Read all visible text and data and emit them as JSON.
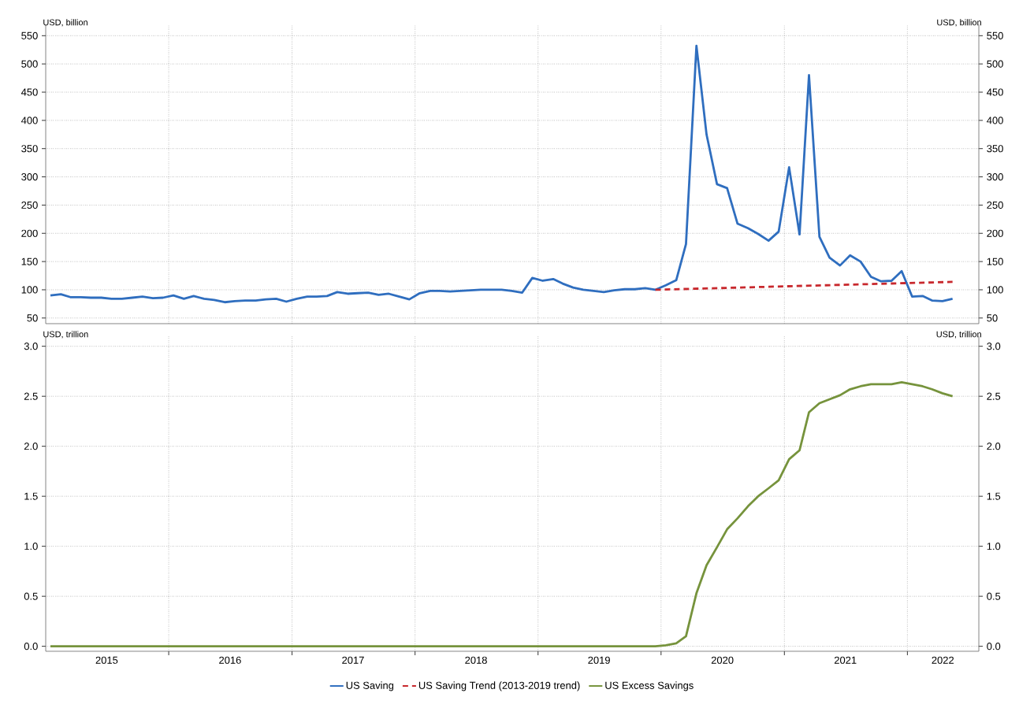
{
  "chart_data": [
    {
      "type": "line",
      "ylabel": "USD, billion",
      "y2label": "USD, billion",
      "x": [
        "2015-01-15",
        "2015-02-15",
        "2015-03-15",
        "2015-04-15",
        "2015-05-15",
        "2015-06-15",
        "2015-07-15",
        "2015-08-15",
        "2015-09-15",
        "2015-10-15",
        "2015-11-15",
        "2015-12-15",
        "2016-01-15",
        "2016-02-15",
        "2016-03-15",
        "2016-04-15",
        "2016-05-15",
        "2016-06-15",
        "2016-07-15",
        "2016-08-15",
        "2016-09-15",
        "2016-10-15",
        "2016-11-15",
        "2016-12-15",
        "2017-01-15",
        "2017-02-15",
        "2017-03-15",
        "2017-04-15",
        "2017-05-15",
        "2017-06-15",
        "2017-07-15",
        "2017-08-15",
        "2017-09-15",
        "2017-10-15",
        "2017-11-15",
        "2017-12-15",
        "2018-01-15",
        "2018-02-15",
        "2018-03-15",
        "2018-04-15",
        "2018-05-15",
        "2018-06-15",
        "2018-07-15",
        "2018-08-15",
        "2018-09-15",
        "2018-10-15",
        "2018-11-15",
        "2018-12-15",
        "2019-01-15",
        "2019-02-15",
        "2019-03-15",
        "2019-04-15",
        "2019-05-15",
        "2019-06-15",
        "2019-07-15",
        "2019-08-15",
        "2019-09-15",
        "2019-10-15",
        "2019-11-15",
        "2019-12-15",
        "2020-01-15",
        "2020-02-15",
        "2020-03-15",
        "2020-04-15",
        "2020-05-15",
        "2020-06-15",
        "2020-07-15",
        "2020-08-15",
        "2020-09-15",
        "2020-10-15",
        "2020-11-15",
        "2020-12-15",
        "2021-01-15",
        "2021-02-15",
        "2021-03-15",
        "2021-04-15",
        "2021-05-15",
        "2021-06-15",
        "2021-07-15",
        "2021-08-15",
        "2021-09-15",
        "2021-10-15",
        "2021-11-15",
        "2021-12-15",
        "2022-01-15",
        "2022-02-15",
        "2022-03-15",
        "2022-04-15",
        "2022-05-15"
      ],
      "series": [
        {
          "name": "US Saving",
          "color": "#2f6ebf",
          "line_style": "solid",
          "values": [
            90,
            92,
            87,
            87,
            86,
            86,
            84,
            84,
            86,
            88,
            85,
            86,
            90,
            84,
            89,
            84,
            82,
            78,
            80,
            81,
            81,
            83,
            84,
            79,
            84,
            88,
            88,
            89,
            96,
            93,
            94,
            95,
            91,
            93,
            88,
            83,
            94,
            98,
            98,
            97,
            98,
            99,
            100,
            100,
            100,
            98,
            95,
            121,
            116,
            119,
            111,
            104,
            100,
            98,
            96,
            99,
            101,
            101,
            103,
            100,
            108,
            117,
            181,
            532,
            375,
            287,
            280,
            217,
            209,
            199,
            187,
            203,
            317,
            198,
            480,
            194,
            157,
            143,
            161,
            150,
            123,
            115,
            116,
            133,
            88,
            89,
            81,
            80,
            84
          ]
        },
        {
          "name": "US Saving Trend (2013-2019 trend)",
          "color": "#c8282d",
          "line_style": "dashed",
          "x": [
            "2019-12-15",
            "2022-05-15"
          ],
          "values": [
            100,
            114
          ]
        }
      ],
      "xlim": [
        "2015-01-01",
        "2022-08-01"
      ],
      "xticks": [
        {
          "value": "2016-01-01",
          "label": null
        },
        {
          "value": "2017-01-01",
          "label": null
        },
        {
          "value": "2018-01-01",
          "label": null
        },
        {
          "value": "2019-01-01",
          "label": null
        },
        {
          "value": "2020-01-01",
          "label": null
        },
        {
          "value": "2021-01-01",
          "label": null
        },
        {
          "value": "2022-01-01",
          "label": null
        }
      ],
      "ylim": [
        40,
        570
      ],
      "yticks": [
        50,
        100,
        150,
        200,
        250,
        300,
        350,
        400,
        450,
        500,
        550
      ],
      "y2lim": [
        40,
        570
      ],
      "y2ticks": [
        50,
        100,
        150,
        200,
        250,
        300,
        350,
        400,
        450,
        500,
        550
      ],
      "tick_labels": "y",
      "grid": true,
      "marker": "none",
      "legend": false
    },
    {
      "type": "line",
      "ylabel": "USD, trillion",
      "y2label": "USD, trillion",
      "x": [
        "2015-01-15",
        "2015-02-15",
        "2015-03-15",
        "2015-04-15",
        "2015-05-15",
        "2015-06-15",
        "2015-07-15",
        "2015-08-15",
        "2015-09-15",
        "2015-10-15",
        "2015-11-15",
        "2015-12-15",
        "2016-01-15",
        "2016-02-15",
        "2016-03-15",
        "2016-04-15",
        "2016-05-15",
        "2016-06-15",
        "2016-07-15",
        "2016-08-15",
        "2016-09-15",
        "2016-10-15",
        "2016-11-15",
        "2016-12-15",
        "2017-01-15",
        "2017-02-15",
        "2017-03-15",
        "2017-04-15",
        "2017-05-15",
        "2017-06-15",
        "2017-07-15",
        "2017-08-15",
        "2017-09-15",
        "2017-10-15",
        "2017-11-15",
        "2017-12-15",
        "2018-01-15",
        "2018-02-15",
        "2018-03-15",
        "2018-04-15",
        "2018-05-15",
        "2018-06-15",
        "2018-07-15",
        "2018-08-15",
        "2018-09-15",
        "2018-10-15",
        "2018-11-15",
        "2018-12-15",
        "2019-01-15",
        "2019-02-15",
        "2019-03-15",
        "2019-04-15",
        "2019-05-15",
        "2019-06-15",
        "2019-07-15",
        "2019-08-15",
        "2019-09-15",
        "2019-10-15",
        "2019-11-15",
        "2019-12-15",
        "2020-01-15",
        "2020-02-15",
        "2020-03-15",
        "2020-04-15",
        "2020-05-15",
        "2020-06-15",
        "2020-07-15",
        "2020-08-15",
        "2020-09-15",
        "2020-10-15",
        "2020-11-15",
        "2020-12-15",
        "2021-01-15",
        "2021-02-15",
        "2021-03-15",
        "2021-04-15",
        "2021-05-15",
        "2021-06-15",
        "2021-07-15",
        "2021-08-15",
        "2021-09-15",
        "2021-10-15",
        "2021-11-15",
        "2021-12-15",
        "2022-01-15",
        "2022-02-15",
        "2022-03-15",
        "2022-04-15",
        "2022-05-15"
      ],
      "series": [
        {
          "name": "US Excess Savings",
          "color": "#76933c",
          "line_style": "solid",
          "values": [
            0,
            0,
            0,
            0,
            0,
            0,
            0,
            0,
            0,
            0,
            0,
            0,
            0,
            0,
            0,
            0,
            0,
            0,
            0,
            0,
            0,
            0,
            0,
            0,
            0,
            0,
            0,
            0,
            0,
            0,
            0,
            0,
            0,
            0,
            0,
            0,
            0,
            0,
            0,
            0,
            0,
            0,
            0,
            0,
            0,
            0,
            0,
            0,
            0,
            0,
            0,
            0,
            0,
            0,
            0,
            0,
            0,
            0,
            0,
            0,
            0.01,
            0.03,
            0.1,
            0.53,
            0.81,
            0.99,
            1.17,
            1.28,
            1.4,
            1.5,
            1.58,
            1.66,
            1.87,
            1.96,
            2.34,
            2.43,
            2.47,
            2.51,
            2.57,
            2.6,
            2.62,
            2.62,
            2.62,
            2.64,
            2.62,
            2.6,
            2.57,
            2.53,
            2.5
          ]
        }
      ],
      "xlim": [
        "2015-01-01",
        "2022-08-01"
      ],
      "xticks": [
        {
          "value": "2015-07-01",
          "label": "2015"
        },
        {
          "value": "2016-01-01",
          "label": null
        },
        {
          "value": "2016-07-01",
          "label": "2016"
        },
        {
          "value": "2017-01-01",
          "label": null
        },
        {
          "value": "2017-07-01",
          "label": "2017"
        },
        {
          "value": "2018-01-01",
          "label": null
        },
        {
          "value": "2018-07-01",
          "label": "2018"
        },
        {
          "value": "2019-01-01",
          "label": null
        },
        {
          "value": "2019-07-01",
          "label": "2019"
        },
        {
          "value": "2020-01-01",
          "label": null
        },
        {
          "value": "2020-07-01",
          "label": "2020"
        },
        {
          "value": "2021-01-01",
          "label": null
        },
        {
          "value": "2021-07-01",
          "label": "2021"
        },
        {
          "value": "2022-01-01",
          "label": null
        },
        {
          "value": "2022-04-16",
          "label": "2022"
        }
      ],
      "ylim": [
        -0.05,
        3.1
      ],
      "yticks": [
        {
          "value": 0,
          "label": "0.0"
        },
        {
          "value": 0.5,
          "label": "0.5"
        },
        {
          "value": 1,
          "label": "1.0"
        },
        {
          "value": 1.5,
          "label": "1.5"
        },
        {
          "value": 2,
          "label": "2.0"
        },
        {
          "value": 2.5,
          "label": "2.5"
        },
        {
          "value": 3,
          "label": "3.0"
        }
      ],
      "y2lim": [
        -0.05,
        3.1
      ],
      "y2ticks": [
        {
          "value": 0,
          "label": "0.0"
        },
        {
          "value": 0.5,
          "label": "0.5"
        },
        {
          "value": 1,
          "label": "1.0"
        },
        {
          "value": 1.5,
          "label": "1.5"
        },
        {
          "value": 2,
          "label": "2.0"
        },
        {
          "value": 2.5,
          "label": "2.5"
        },
        {
          "value": 3,
          "label": "3.0"
        }
      ],
      "grid": true,
      "marker": "none",
      "legend": "bottom"
    }
  ]
}
